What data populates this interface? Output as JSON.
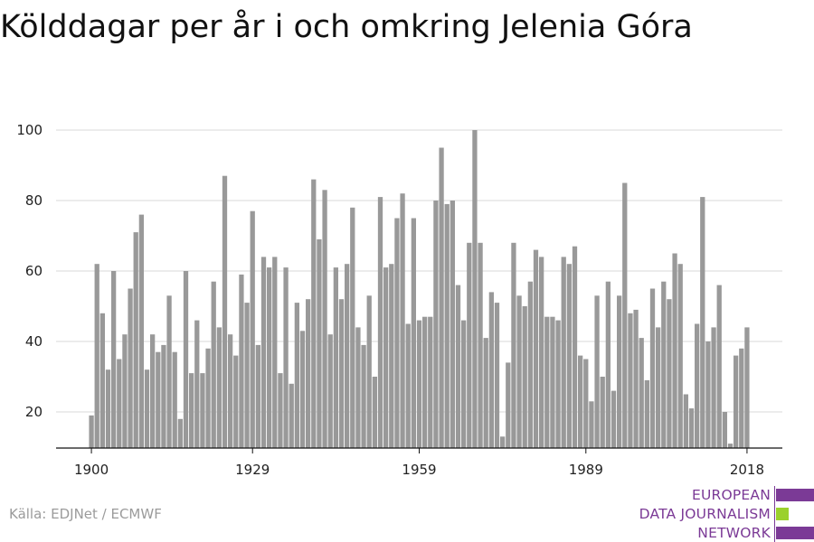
{
  "title": "Kölddagar per år i och omkring Jelenia Góra",
  "source": "Källa: EDJNet / ECMWF",
  "logo": {
    "lines": [
      "EUROPEAN",
      "DATA JOURNALISM",
      "NETWORK"
    ],
    "colors": {
      "purple": "#7b3a96",
      "green": "#9bd12c"
    }
  },
  "chart_data": {
    "type": "bar",
    "title": "Kölddagar per år i och omkring Jelenia Góra",
    "xlabel": "",
    "ylabel": "",
    "x_start": 1900,
    "x_end": 2018,
    "x_ticks": [
      1900,
      1929,
      1959,
      1989,
      2018
    ],
    "y_ticks": [
      20,
      40,
      60,
      80,
      100
    ],
    "ylim": [
      10,
      105
    ],
    "grid": true,
    "bar_color": "#999999",
    "values": [
      19,
      62,
      48,
      32,
      60,
      35,
      42,
      55,
      71,
      76,
      32,
      42,
      37,
      39,
      53,
      37,
      18,
      60,
      31,
      46,
      31,
      38,
      57,
      44,
      87,
      42,
      36,
      59,
      51,
      77,
      39,
      64,
      61,
      64,
      31,
      61,
      28,
      51,
      43,
      52,
      86,
      69,
      83,
      42,
      61,
      52,
      62,
      78,
      44,
      39,
      53,
      30,
      81,
      61,
      62,
      75,
      82,
      45,
      75,
      46,
      47,
      47,
      80,
      95,
      79,
      80,
      56,
      46,
      68,
      100,
      68,
      41,
      54,
      51,
      13,
      34,
      68,
      53,
      50,
      57,
      66,
      64,
      47,
      47,
      46,
      64,
      62,
      67,
      36,
      35,
      23,
      53,
      30,
      57,
      26,
      53,
      85,
      48,
      49,
      41,
      29,
      55,
      44,
      57,
      52,
      65,
      62,
      25,
      21,
      45,
      81,
      40,
      44,
      56,
      20,
      11,
      36,
      38,
      44
    ]
  }
}
